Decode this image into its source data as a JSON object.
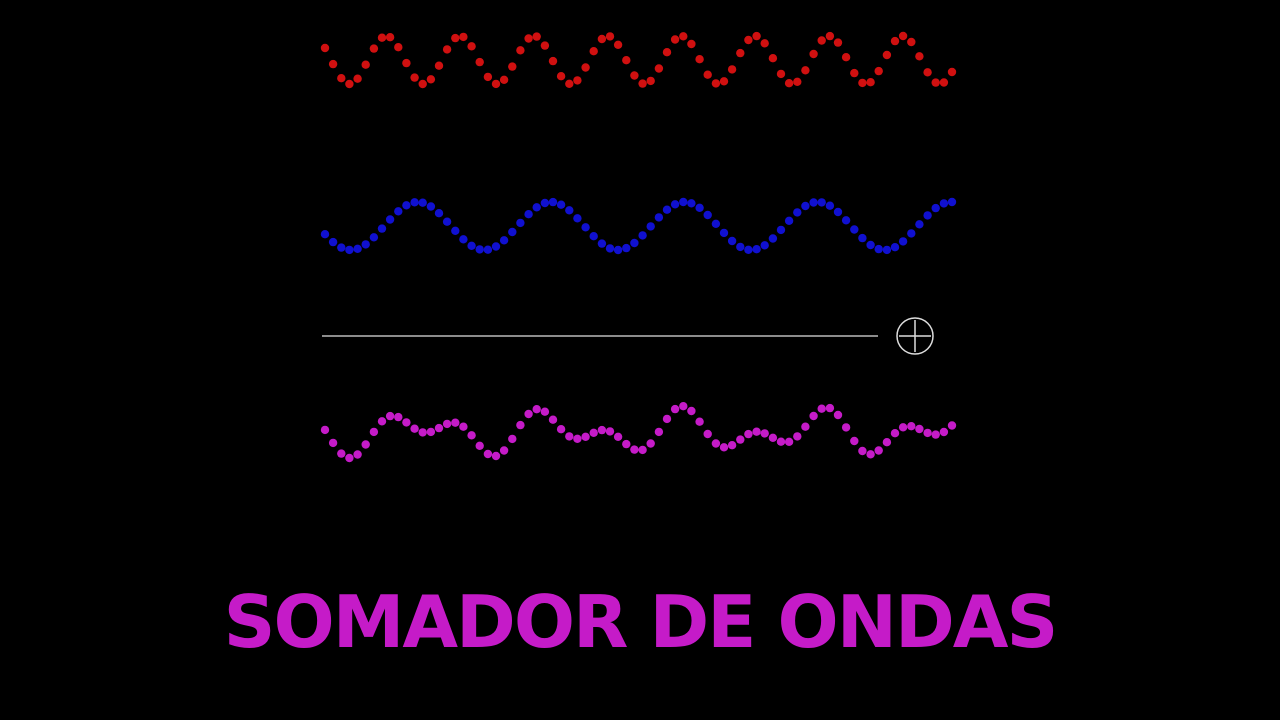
{
  "title": "SOMADOR DE ONDAS",
  "colors": {
    "background": "#000000",
    "wave_1": "#d01010",
    "wave_2": "#1010d0",
    "wave_sum": "#c51bc8",
    "divider": "#bbbbbb",
    "title": "#c51bc8"
  },
  "icons": {
    "sum_operator": "plus-in-circle-icon"
  },
  "waves": [
    {
      "id": "wave-1",
      "color_key": "wave_1",
      "cycles": 8.5,
      "amplitude": 1.0,
      "phase_deg": 150,
      "points": 78
    },
    {
      "id": "wave-2",
      "color_key": "wave_2",
      "cycles": 4.7,
      "amplitude": 1.0,
      "phase_deg": 200,
      "points": 78
    },
    {
      "id": "wave-sum",
      "color_key": "wave_sum",
      "sum_of": [
        "wave-1",
        "wave-2"
      ],
      "points": 78
    }
  ]
}
